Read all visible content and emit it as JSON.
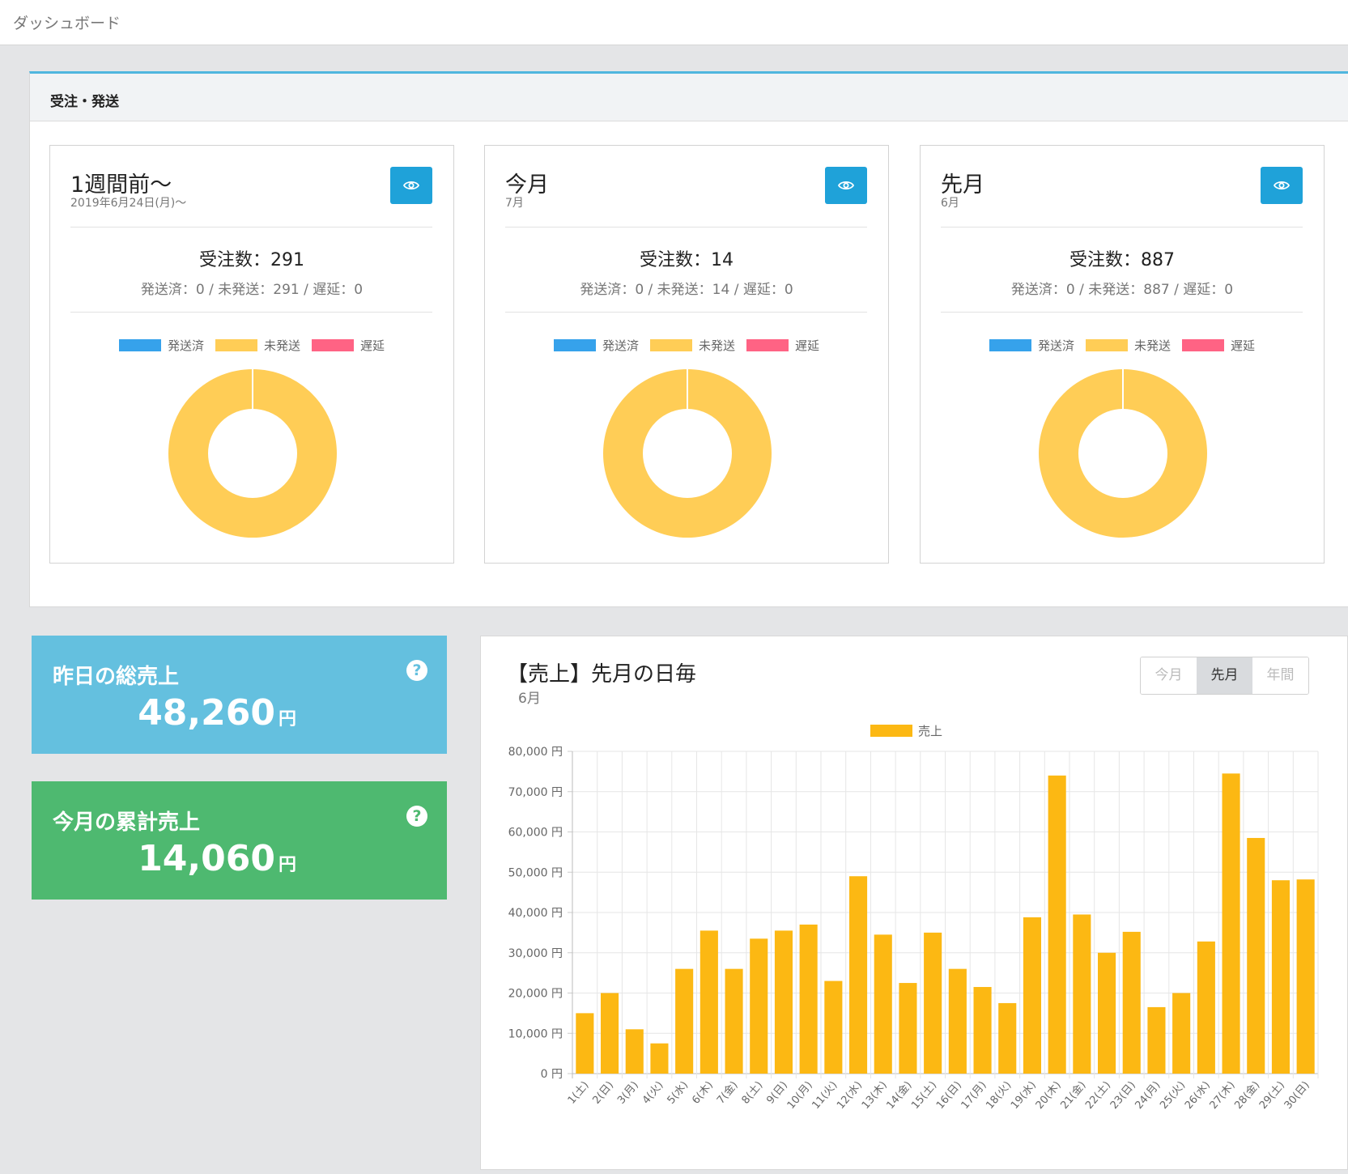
{
  "header": {
    "title": "ダッシュボード"
  },
  "orders_panel": {
    "title": "受注・発送",
    "legend": [
      {
        "label": "発送済",
        "color": "#36a2eb"
      },
      {
        "label": "未発送",
        "color": "#ffcd56"
      },
      {
        "label": "遅延",
        "color": "#ff6384"
      }
    ],
    "cards": [
      {
        "title": "1週間前～",
        "subtitle": "2019年6月24日(月)～",
        "count_text": "受注数：291",
        "detail_text": "発送済：0 / 未発送：291 / 遅延：0",
        "shipped": 0,
        "unshipped": 291,
        "delayed": 0
      },
      {
        "title": "今月",
        "subtitle": "7月",
        "count_text": "受注数：14",
        "detail_text": "発送済：0 / 未発送：14 / 遅延：0",
        "shipped": 0,
        "unshipped": 14,
        "delayed": 0
      },
      {
        "title": "先月",
        "subtitle": "6月",
        "count_text": "受注数：887",
        "detail_text": "発送済：0 / 未発送：887 / 遅延：0",
        "shipped": 0,
        "unshipped": 887,
        "delayed": 0
      }
    ],
    "view_icon": "eye-icon"
  },
  "stats": {
    "yesterday": {
      "label": "昨日の総売上",
      "value": "48,260",
      "unit": "円",
      "help": "?",
      "color": "#64c0df"
    },
    "month_total": {
      "label": "今月の累計売上",
      "value": "14,060",
      "unit": "円",
      "help": "?",
      "color": "#4eb970"
    }
  },
  "sales": {
    "title": "【売上】先月の日毎",
    "subtitle": "6月",
    "periods": [
      "今月",
      "先月",
      "年間"
    ],
    "active_period": "先月"
  },
  "chart_data": {
    "type": "bar",
    "title": "【売上】先月の日毎",
    "series": [
      {
        "name": "売上",
        "color": "#fcb813",
        "values": [
          15000,
          20000,
          11000,
          7500,
          26000,
          35500,
          26000,
          33500,
          35500,
          37000,
          23000,
          49000,
          34500,
          22500,
          35000,
          26000,
          21500,
          17500,
          38800,
          74000,
          39500,
          30000,
          35200,
          16500,
          20000,
          32800,
          74500,
          58500,
          48000,
          48200
        ]
      }
    ],
    "categories": [
      "1(土)",
      "2(日)",
      "3(月)",
      "4(火)",
      "5(水)",
      "6(木)",
      "7(金)",
      "8(土)",
      "9(日)",
      "10(月)",
      "11(火)",
      "12(水)",
      "13(木)",
      "14(金)",
      "15(土)",
      "16(日)",
      "17(月)",
      "18(火)",
      "19(水)",
      "20(木)",
      "21(金)",
      "22(土)",
      "23(日)",
      "24(月)",
      "25(火)",
      "26(水)",
      "27(木)",
      "28(金)",
      "29(土)",
      "30(日)"
    ],
    "ylim": [
      0,
      80000
    ],
    "yticks": [
      0,
      10000,
      20000,
      30000,
      40000,
      50000,
      60000,
      70000,
      80000
    ],
    "ytick_labels": [
      "0 円",
      "10,000 円",
      "20,000 円",
      "30,000 円",
      "40,000 円",
      "50,000 円",
      "60,000 円",
      "70,000 円",
      "80,000 円"
    ],
    "legend_position": "top",
    "grid": true
  }
}
